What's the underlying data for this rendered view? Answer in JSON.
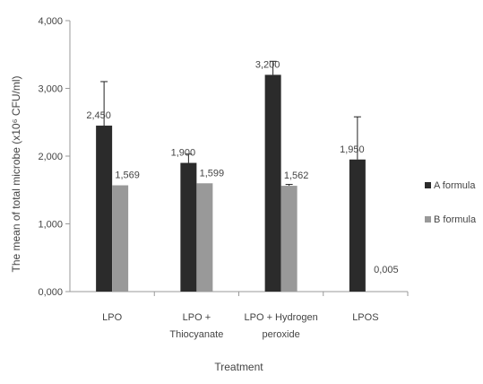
{
  "chart_data": {
    "type": "bar",
    "categories": [
      [
        "LPO"
      ],
      [
        "LPO +",
        "Thiocyanate"
      ],
      [
        "LPO + Hydrogen",
        "peroxide"
      ],
      [
        "LPOS"
      ]
    ],
    "series": [
      {
        "name": "A formula",
        "color": "#2b2b2b",
        "values": [
          2.45,
          1.9,
          3.2,
          1.95
        ],
        "value_labels": [
          "2,450",
          "1,900",
          "3,200",
          "1,950"
        ],
        "error_plus": [
          0.65,
          0.13,
          0.2,
          0.63
        ]
      },
      {
        "name": "B formula",
        "color": "#999999",
        "values": [
          1.569,
          1.599,
          1.562,
          0.005
        ],
        "value_labels": [
          "1,569",
          "1,599",
          "1,562",
          "0,005"
        ],
        "error_plus": [
          0,
          0,
          0.02,
          0
        ]
      }
    ],
    "ylim": [
      0,
      4
    ],
    "yticks": [
      0,
      1,
      2,
      3,
      4
    ],
    "ytick_labels": [
      "0,000",
      "1,000",
      "2,000",
      "3,000",
      "4,000"
    ],
    "xlabel": "Treatment",
    "ylabel": "The mean of total microbe  (x10⁶ CFU/ml)",
    "legend": "right",
    "grid": false
  }
}
